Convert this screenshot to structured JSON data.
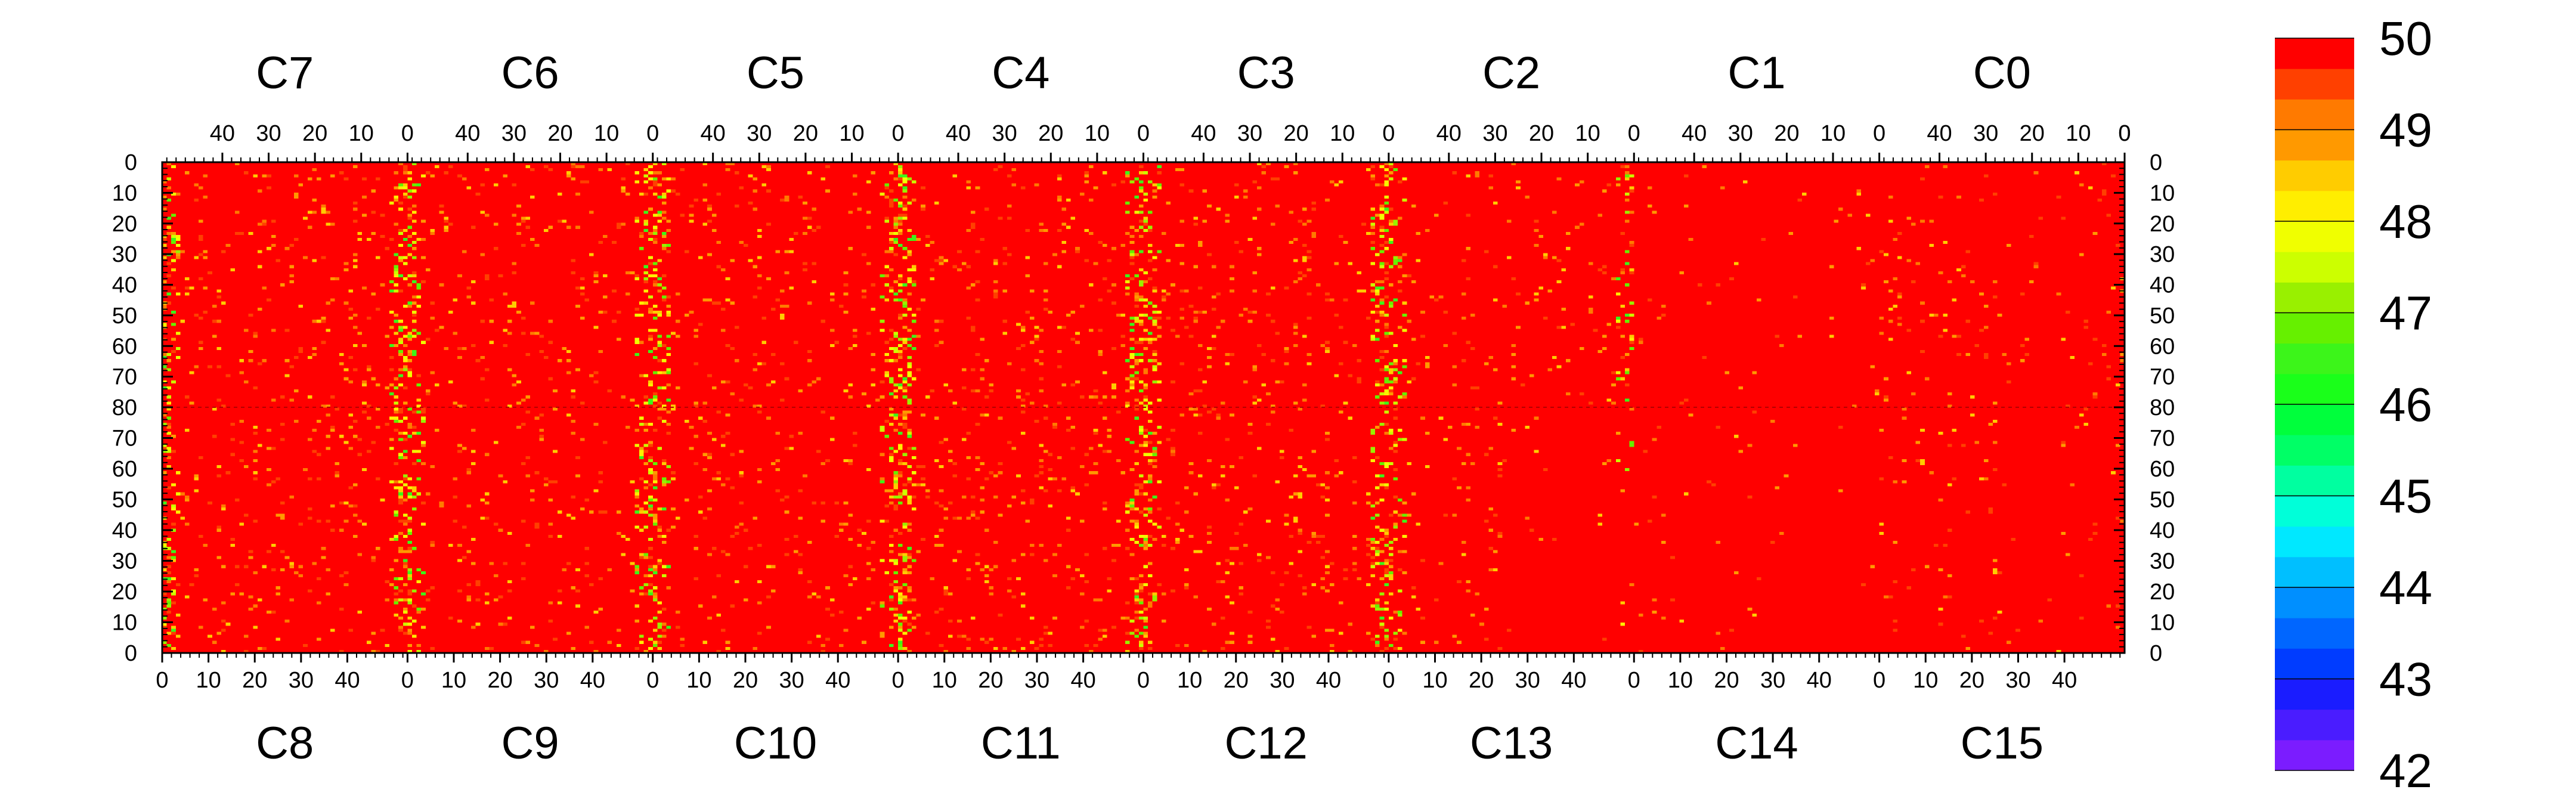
{
  "chart_data": {
    "type": "heatmap",
    "top_panels": [
      "C7",
      "C6",
      "C5",
      "C4",
      "C3",
      "C2",
      "C1",
      "C0"
    ],
    "bottom_panels": [
      "C8",
      "C9",
      "C10",
      "C11",
      "C12",
      "C13",
      "C14",
      "C15"
    ],
    "top_x_ticks": [
      "40",
      "30",
      "20",
      "10",
      "0"
    ],
    "bottom_x_ticks": [
      "0",
      "10",
      "20",
      "30",
      "40"
    ],
    "top_x_tick_values": [
      40,
      30,
      20,
      10,
      0
    ],
    "bottom_x_tick_values": [
      0,
      10,
      20,
      30,
      40
    ],
    "panel_x_range": [
      0,
      53
    ],
    "y_ticks_upper": [
      "0",
      "10",
      "20",
      "30",
      "40",
      "50",
      "60",
      "70",
      "80"
    ],
    "y_ticks_lower": [
      "70",
      "60",
      "50",
      "40",
      "30",
      "20",
      "10",
      "0"
    ],
    "y_tick_values_upper": [
      0,
      10,
      20,
      30,
      40,
      50,
      60,
      70,
      80
    ],
    "y_tick_values_lower": [
      70,
      60,
      50,
      40,
      30,
      20,
      10,
      0
    ],
    "y_half_range": [
      0,
      80
    ],
    "z_range": [
      42,
      50
    ],
    "colorbar_labels": [
      "50",
      "49",
      "48",
      "47",
      "46",
      "45",
      "44",
      "43",
      "42"
    ],
    "colorbar_label_values": [
      50,
      49,
      48,
      47,
      46,
      45,
      44,
      43,
      42
    ],
    "palette": [
      "#7b1cff",
      "#4a1cff",
      "#1a1cff",
      "#003cff",
      "#0066ff",
      "#008fff",
      "#00bfff",
      "#00e8ff",
      "#00ffd9",
      "#00ffa0",
      "#00ff66",
      "#00ff3c",
      "#1aff1a",
      "#3cf51a",
      "#66f000",
      "#99f000",
      "#ccff00",
      "#f0ff00",
      "#ffee00",
      "#ffcc00",
      "#ff9900",
      "#ff7a00",
      "#ff4000",
      "#ff0000"
    ],
    "dominant_value": 50,
    "dominant_color": "#ff0000",
    "warm_band_columns": [
      0,
      1,
      2,
      3,
      4
    ],
    "panel_activity": [
      0.12,
      0.11,
      0.12,
      0.14,
      0.12,
      0.08,
      0.03,
      0.06
    ]
  }
}
